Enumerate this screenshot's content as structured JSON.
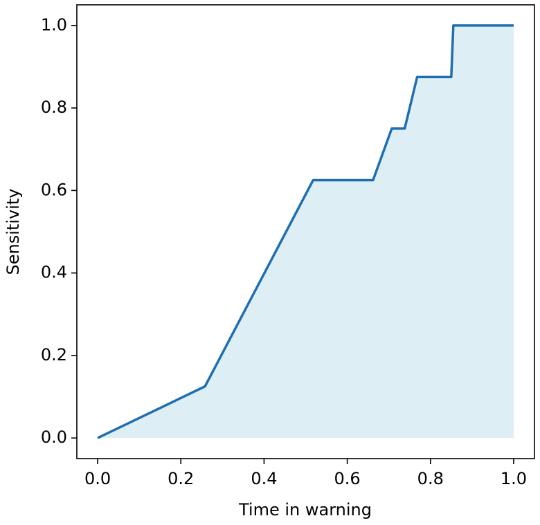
{
  "chart_data": {
    "type": "line",
    "xlabel": "Time in warning",
    "ylabel": "Sensitivity",
    "x": [
      0,
      0.258,
      0.518,
      0.662,
      0.707,
      0.738,
      0.768,
      0.85,
      0.855,
      1.0
    ],
    "series": [
      {
        "color": "#1f6eb0",
        "values": [
          0,
          0.125,
          0.625,
          0.625,
          0.75,
          0.75,
          0.875,
          0.875,
          1.0,
          1.0
        ]
      }
    ],
    "fill": true,
    "fill_color": "#add8e6",
    "xlim": [
      -0.05,
      1.05
    ],
    "ylim": [
      -0.05,
      1.05
    ],
    "xticks": [
      {
        "value": 0,
        "label": "0.0"
      },
      0.2,
      0.4,
      0.6,
      0.8,
      {
        "value": 1,
        "label": "1.0"
      }
    ],
    "yticks": [
      {
        "value": 0,
        "label": "0.0"
      },
      0.2,
      0.4,
      0.6,
      0.8,
      {
        "value": 1,
        "label": "1.0"
      }
    ],
    "grid": false
  }
}
